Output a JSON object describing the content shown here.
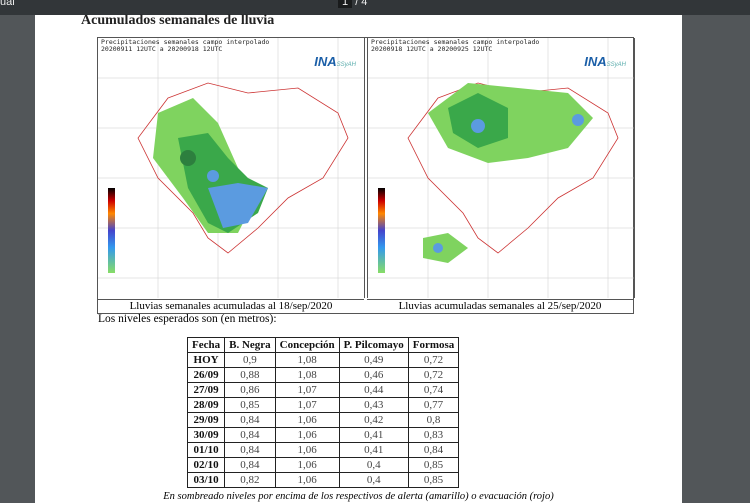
{
  "viewer": {
    "title": "ual",
    "current_page": "1",
    "page_total": "/ 4"
  },
  "document": {
    "heading": "Acumulados semanales de lluvia",
    "maps": [
      {
        "title_line1": "Precipitaciones semanales campo interpolado",
        "title_line2": "20200911 12UTC a 20200918 12UTC",
        "logo": "INA",
        "logo_sub": "SSyAH",
        "caption": "Lluvias semanales acumuladas al 18/sep/2020"
      },
      {
        "title_line1": "Precipitaciones semanales campo interpolado",
        "title_line2": "20200918 12UTC a 20200925 12UTC",
        "logo": "INA",
        "logo_sub": "SSyAH",
        "caption": "Lluvias acumuladas semanales al 25/sep/2020"
      }
    ],
    "intro": "Los niveles esperados son (en metros):",
    "table": {
      "headers": [
        "Fecha",
        "B. Negra",
        "Concepción",
        "P. Pilcomayo",
        "Formosa"
      ],
      "rows": [
        [
          "HOY",
          "0,9",
          "1,08",
          "0,49",
          "0,72"
        ],
        [
          "26/09",
          "0,88",
          "1,08",
          "0,46",
          "0,72"
        ],
        [
          "27/09",
          "0,86",
          "1,07",
          "0,44",
          "0,74"
        ],
        [
          "28/09",
          "0,85",
          "1,07",
          "0,43",
          "0,77"
        ],
        [
          "29/09",
          "0,84",
          "1,06",
          "0,42",
          "0,8"
        ],
        [
          "30/09",
          "0,84",
          "1,06",
          "0,41",
          "0,83"
        ],
        [
          "01/10",
          "0,84",
          "1,06",
          "0,41",
          "0,84"
        ],
        [
          "02/10",
          "0,84",
          "1,06",
          "0,4",
          "0,85"
        ],
        [
          "03/10",
          "0,82",
          "1,06",
          "0,4",
          "0,85"
        ]
      ]
    },
    "note": "En sombreado niveles por encima de los respectivos de alerta (amarillo) o evacuación (rojo)"
  }
}
